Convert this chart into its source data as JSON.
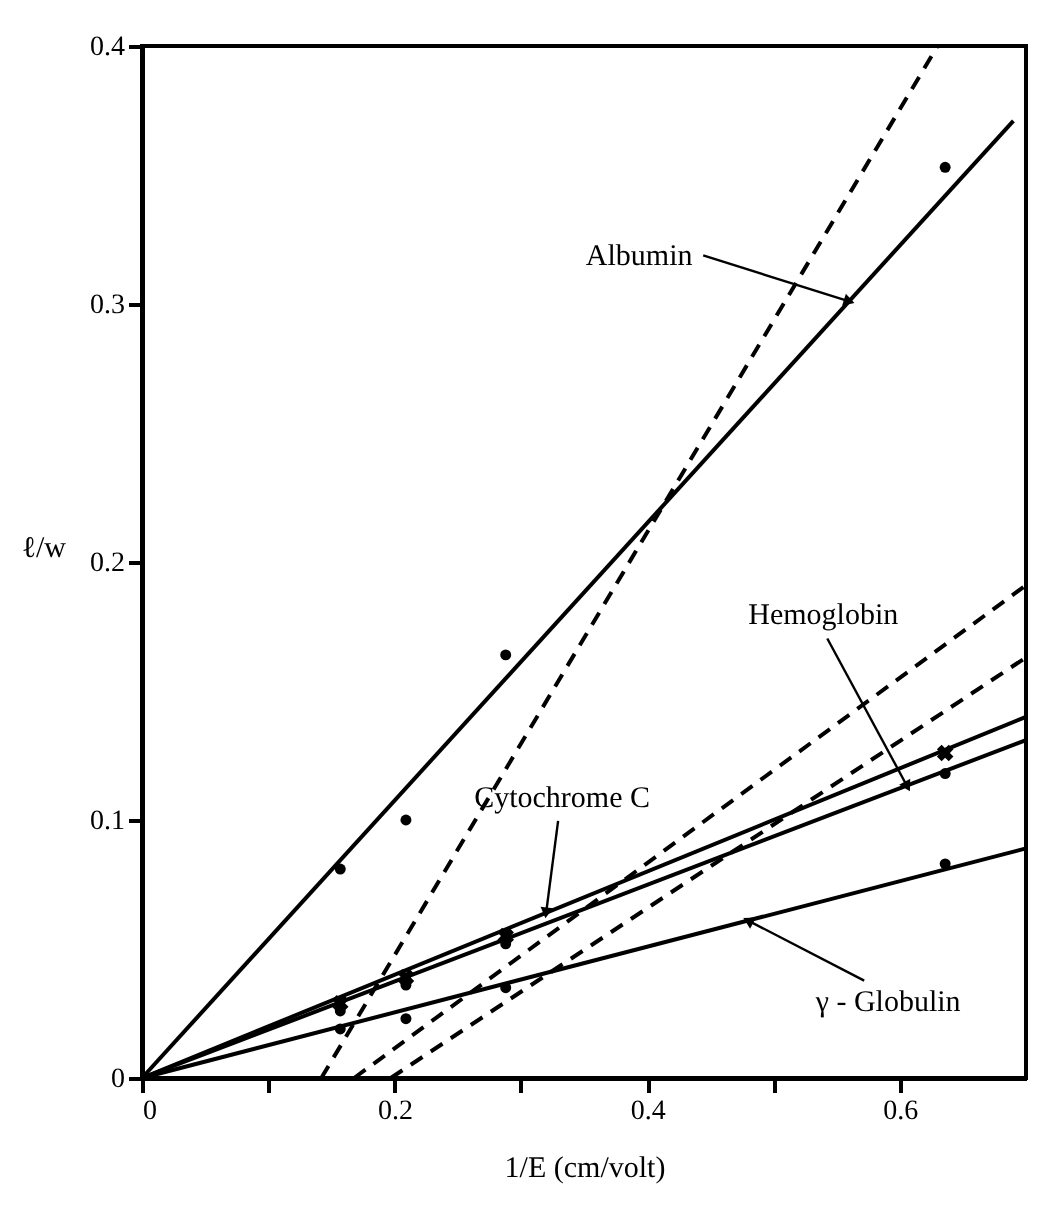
{
  "chart_data": {
    "type": "line",
    "xlabel": "1/E (cm/volt)",
    "ylabel": "ℓ/w",
    "xlim": [
      0,
      0.7
    ],
    "ylim": [
      0,
      0.4
    ],
    "xticks": [
      0,
      {
        "value": 0.1,
        "label": null
      },
      0.2,
      {
        "value": 0.3,
        "label": null
      },
      0.4,
      {
        "value": 0.5,
        "label": null
      },
      0.6
    ],
    "yticks": [
      0,
      0.1,
      0.2,
      0.3,
      0.4
    ],
    "grid": false,
    "series": [
      {
        "color": "#000000",
        "line_style": "solid",
        "marker": "none",
        "x": [
          0,
          0.69
        ],
        "values": [
          0,
          0.371
        ]
      },
      {
        "color": "#000000",
        "line_style": "dashed",
        "marker": "none",
        "x": [
          0.142,
          0.63
        ],
        "values": [
          0,
          0.4
        ]
      },
      {
        "type": "scatter",
        "color": "#000000",
        "marker": "circle",
        "x": [
          0.157,
          0.209,
          0.288,
          0.636
        ],
        "values": [
          0.081,
          0.1,
          0.164,
          0.353
        ]
      },
      {
        "color": "#000000",
        "line_style": "solid",
        "marker": "none",
        "x": [
          0,
          0.7
        ],
        "values": [
          0,
          0.14
        ]
      },
      {
        "type": "scatter",
        "color": "#000000",
        "marker": "cross",
        "x": [
          0.157,
          0.209,
          0.288,
          0.636
        ],
        "values": [
          0.029,
          0.039,
          0.055,
          0.126
        ]
      },
      {
        "color": "#000000",
        "line_style": "solid",
        "marker": "none",
        "x": [
          0,
          0.7
        ],
        "values": [
          0,
          0.131
        ]
      },
      {
        "color": "#000000",
        "line_style": "dashed",
        "marker": "none",
        "x": [
          0.168,
          0.7
        ],
        "values": [
          0,
          0.191
        ]
      },
      {
        "type": "scatter",
        "color": "#000000",
        "marker": "circle",
        "x": [
          0.157,
          0.209,
          0.288,
          0.636
        ],
        "values": [
          0.026,
          0.036,
          0.052,
          0.118
        ]
      },
      {
        "color": "#000000",
        "line_style": "solid",
        "marker": "none",
        "x": [
          0,
          0.7
        ],
        "values": [
          0,
          0.089
        ]
      },
      {
        "color": "#000000",
        "line_style": "dashed",
        "marker": "none",
        "x": [
          0.197,
          0.7
        ],
        "values": [
          0,
          0.163
        ]
      },
      {
        "type": "scatter",
        "color": "#000000",
        "marker": "circle",
        "x": [
          0.157,
          0.209,
          0.288,
          0.636
        ],
        "values": [
          0.019,
          0.023,
          0.035,
          0.083
        ]
      }
    ],
    "annotations": [
      {
        "text": "Albumin",
        "x": 0.56,
        "y": 0.301
      },
      {
        "text": "Hemoglobin",
        "x": 0.606,
        "y": 0.113
      },
      {
        "text": "Cytochrome C",
        "x": 0.32,
        "y": 0.064
      },
      {
        "text": "γ - Globulin",
        "x": 0.48,
        "y": 0.061
      }
    ]
  }
}
